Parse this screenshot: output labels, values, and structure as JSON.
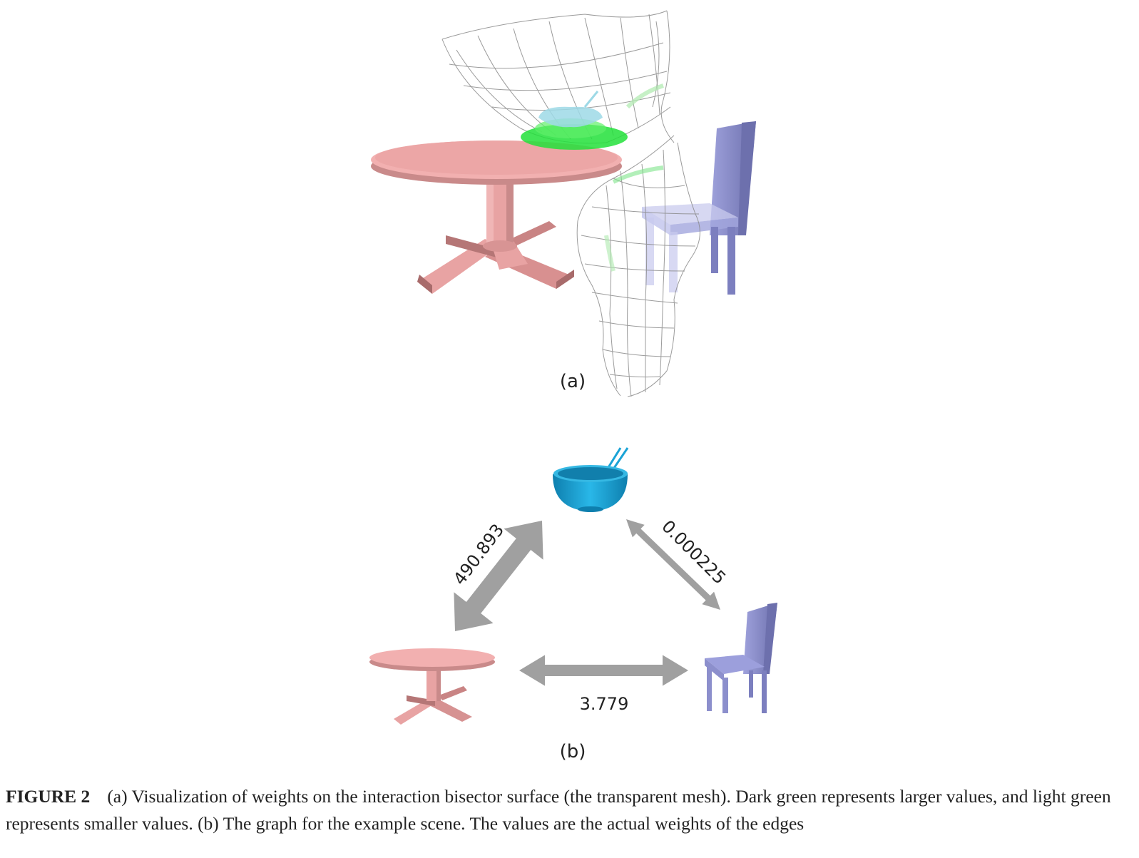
{
  "figure": {
    "panel_a_label": "(a)",
    "panel_b_label": "(b)",
    "colors": {
      "table": "#e8a3a3",
      "table_dark": "#b57676",
      "chair": "#8c8fcc",
      "chair_dark": "#6d70ad",
      "bowl": "#1aa3d6",
      "bowl_dark": "#0e7fae",
      "mesh": "#8a8a8a",
      "weight_dark": "#22e03a",
      "weight_light": "#aeeaae",
      "arrow": "#a0a0a0"
    },
    "graph": {
      "nodes": [
        "bowl",
        "table",
        "chair"
      ],
      "edges": [
        {
          "from": "bowl",
          "to": "table",
          "weight": "490.893"
        },
        {
          "from": "bowl",
          "to": "chair",
          "weight": "0.000225"
        },
        {
          "from": "table",
          "to": "chair",
          "weight": "3.779"
        }
      ]
    }
  },
  "caption": {
    "figure_number": "FIGURE 2",
    "text": "(a) Visualization of weights on the interaction bisector surface (the transparent mesh). Dark green represents larger values, and light green represents smaller values. (b) The graph for the example scene. The values are the actual weights of the edges"
  }
}
